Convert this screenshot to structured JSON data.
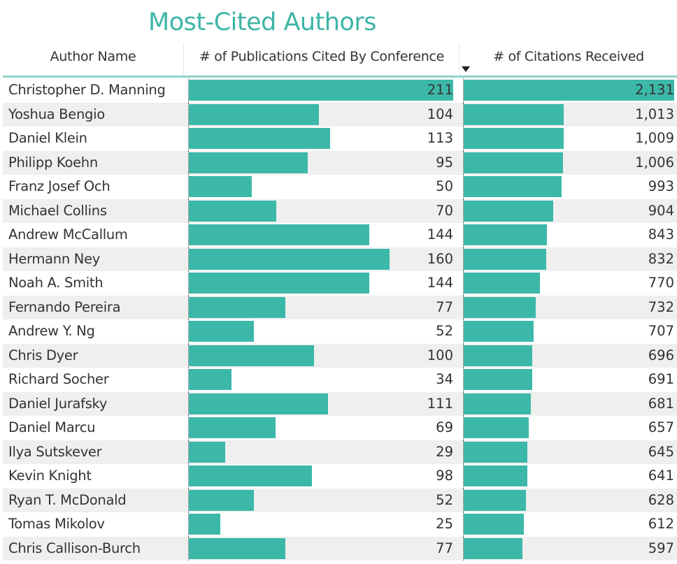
{
  "title": "Most-Cited Authors",
  "accent_color": "#3cb8a9",
  "sort_indicator": "sort-descending-icon",
  "columns": [
    "Author Name",
    "# of Publications Cited By Conference",
    "# of Citations Received"
  ],
  "rows": [
    {
      "name": "Christopher D. Manning",
      "pubs": 211,
      "pubs_label": "211",
      "cites": 2131,
      "cites_label": "2,131"
    },
    {
      "name": "Yoshua Bengio",
      "pubs": 104,
      "pubs_label": "104",
      "cites": 1013,
      "cites_label": "1,013"
    },
    {
      "name": "Daniel Klein",
      "pubs": 113,
      "pubs_label": "113",
      "cites": 1009,
      "cites_label": "1,009"
    },
    {
      "name": "Philipp Koehn",
      "pubs": 95,
      "pubs_label": "95",
      "cites": 1006,
      "cites_label": "1,006"
    },
    {
      "name": "Franz Josef Och",
      "pubs": 50,
      "pubs_label": "50",
      "cites": 993,
      "cites_label": "993"
    },
    {
      "name": "Michael Collins",
      "pubs": 70,
      "pubs_label": "70",
      "cites": 904,
      "cites_label": "904"
    },
    {
      "name": "Andrew McCallum",
      "pubs": 144,
      "pubs_label": "144",
      "cites": 843,
      "cites_label": "843"
    },
    {
      "name": "Hermann Ney",
      "pubs": 160,
      "pubs_label": "160",
      "cites": 832,
      "cites_label": "832"
    },
    {
      "name": "Noah A. Smith",
      "pubs": 144,
      "pubs_label": "144",
      "cites": 770,
      "cites_label": "770"
    },
    {
      "name": "Fernando Pereira",
      "pubs": 77,
      "pubs_label": "77",
      "cites": 732,
      "cites_label": "732"
    },
    {
      "name": "Andrew Y. Ng",
      "pubs": 52,
      "pubs_label": "52",
      "cites": 707,
      "cites_label": "707"
    },
    {
      "name": "Chris Dyer",
      "pubs": 100,
      "pubs_label": "100",
      "cites": 696,
      "cites_label": "696"
    },
    {
      "name": "Richard Socher",
      "pubs": 34,
      "pubs_label": "34",
      "cites": 691,
      "cites_label": "691"
    },
    {
      "name": "Daniel Jurafsky",
      "pubs": 111,
      "pubs_label": "111",
      "cites": 681,
      "cites_label": "681"
    },
    {
      "name": "Daniel Marcu",
      "pubs": 69,
      "pubs_label": "69",
      "cites": 657,
      "cites_label": "657"
    },
    {
      "name": "Ilya Sutskever",
      "pubs": 29,
      "pubs_label": "29",
      "cites": 645,
      "cites_label": "645"
    },
    {
      "name": "Kevin Knight",
      "pubs": 98,
      "pubs_label": "98",
      "cites": 641,
      "cites_label": "641"
    },
    {
      "name": "Ryan T. McDonald",
      "pubs": 52,
      "pubs_label": "52",
      "cites": 628,
      "cites_label": "628"
    },
    {
      "name": "Tomas Mikolov",
      "pubs": 25,
      "pubs_label": "25",
      "cites": 612,
      "cites_label": "612"
    },
    {
      "name": "Chris Callison-Burch",
      "pubs": 77,
      "pubs_label": "77",
      "cites": 597,
      "cites_label": "597"
    }
  ]
}
